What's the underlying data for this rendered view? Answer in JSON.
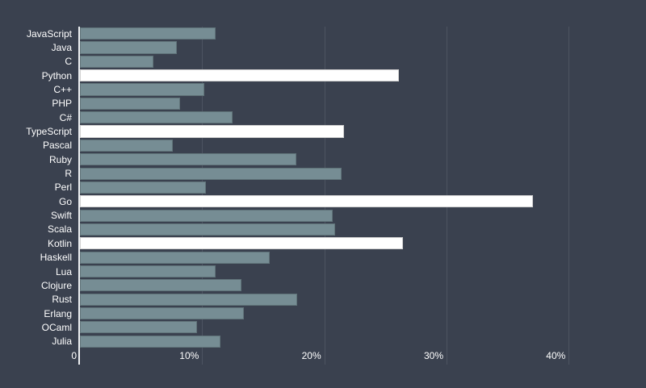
{
  "chart_data": {
    "type": "bar",
    "orientation": "horizontal",
    "title": "",
    "xlabel": "",
    "ylabel": "",
    "xlim": [
      0,
      45
    ],
    "grid": true,
    "x_ticks": [
      {
        "value": 0,
        "label": "0"
      },
      {
        "value": 10,
        "label": "10%"
      },
      {
        "value": 20,
        "label": "20%"
      },
      {
        "value": 30,
        "label": "30%"
      },
      {
        "value": 40,
        "label": "40%"
      }
    ],
    "items": [
      {
        "label": "JavaScript",
        "value": 11.1,
        "highlighted": false
      },
      {
        "label": "Java",
        "value": 7.9,
        "highlighted": false
      },
      {
        "label": "C",
        "value": 6.0,
        "highlighted": false
      },
      {
        "label": "Python",
        "value": 26.1,
        "highlighted": true
      },
      {
        "label": "C++",
        "value": 10.2,
        "highlighted": false
      },
      {
        "label": "PHP",
        "value": 8.2,
        "highlighted": false
      },
      {
        "label": "C#",
        "value": 12.5,
        "highlighted": false
      },
      {
        "label": "TypeScript",
        "value": 21.6,
        "highlighted": true
      },
      {
        "label": "Pascal",
        "value": 7.6,
        "highlighted": false
      },
      {
        "label": "Ruby",
        "value": 17.7,
        "highlighted": false
      },
      {
        "label": "R",
        "value": 21.4,
        "highlighted": false
      },
      {
        "label": "Perl",
        "value": 10.3,
        "highlighted": false
      },
      {
        "label": "Go",
        "value": 37.1,
        "highlighted": true
      },
      {
        "label": "Swift",
        "value": 20.7,
        "highlighted": false
      },
      {
        "label": "Scala",
        "value": 20.9,
        "highlighted": false
      },
      {
        "label": "Kotlin",
        "value": 26.4,
        "highlighted": true
      },
      {
        "label": "Haskell",
        "value": 15.5,
        "highlighted": false
      },
      {
        "label": "Lua",
        "value": 11.1,
        "highlighted": false
      },
      {
        "label": "Clojure",
        "value": 13.2,
        "highlighted": false
      },
      {
        "label": "Rust",
        "value": 17.8,
        "highlighted": false
      },
      {
        "label": "Erlang",
        "value": 13.4,
        "highlighted": false
      },
      {
        "label": "OCaml",
        "value": 9.6,
        "highlighted": false
      },
      {
        "label": "Julia",
        "value": 11.5,
        "highlighted": false
      }
    ],
    "colors": {
      "background": "#3a414f",
      "bar": "#768d94",
      "bar_highlight": "#ffffff",
      "gridline": "#4d5461",
      "axis_line": "#edeff2",
      "text": "#ffffff"
    },
    "legend": null
  }
}
